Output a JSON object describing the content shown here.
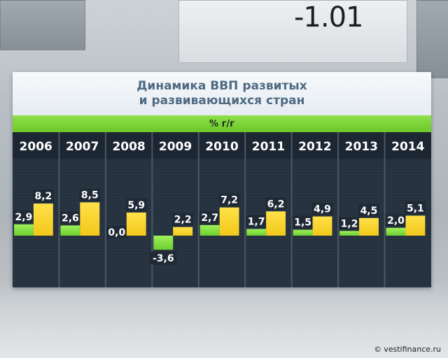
{
  "background": {
    "ticker": "-1.01"
  },
  "credit": "vestifinance.ru",
  "colors": {
    "developed": "#6ccf2f",
    "developing": "#f2c81a",
    "header_bar": "#7ed33a",
    "plot_background": "#25313d",
    "title_text": "#4e6a82"
  },
  "chart_data": {
    "type": "bar",
    "title": [
      "Динамика ВВП развитых",
      "и развивающихся стран"
    ],
    "unit": "% г/г",
    "categories": [
      "2006",
      "2007",
      "2008",
      "2009",
      "2010",
      "2011",
      "2012",
      "2013",
      "2014"
    ],
    "series": [
      {
        "color": "#6ccf2f",
        "values": [
          2.9,
          2.6,
          0.0,
          -3.6,
          2.7,
          1.7,
          1.5,
          1.2,
          2.0
        ],
        "labels": [
          "2,9",
          "2,6",
          "0,0",
          "-3,6",
          "2,7",
          "1,7",
          "1,5",
          "1,2",
          "2,0"
        ]
      },
      {
        "color": "#f2c81a",
        "values": [
          8.2,
          8.5,
          5.9,
          2.2,
          7.2,
          6.2,
          4.9,
          4.5,
          5.1
        ],
        "labels": [
          "8,2",
          "8,5",
          "5,9",
          "2,2",
          "7,2",
          "6,2",
          "4,9",
          "4,5",
          "5,1"
        ]
      }
    ],
    "ylim": [
      -6,
      10
    ],
    "grid": true,
    "legend": "none"
  }
}
